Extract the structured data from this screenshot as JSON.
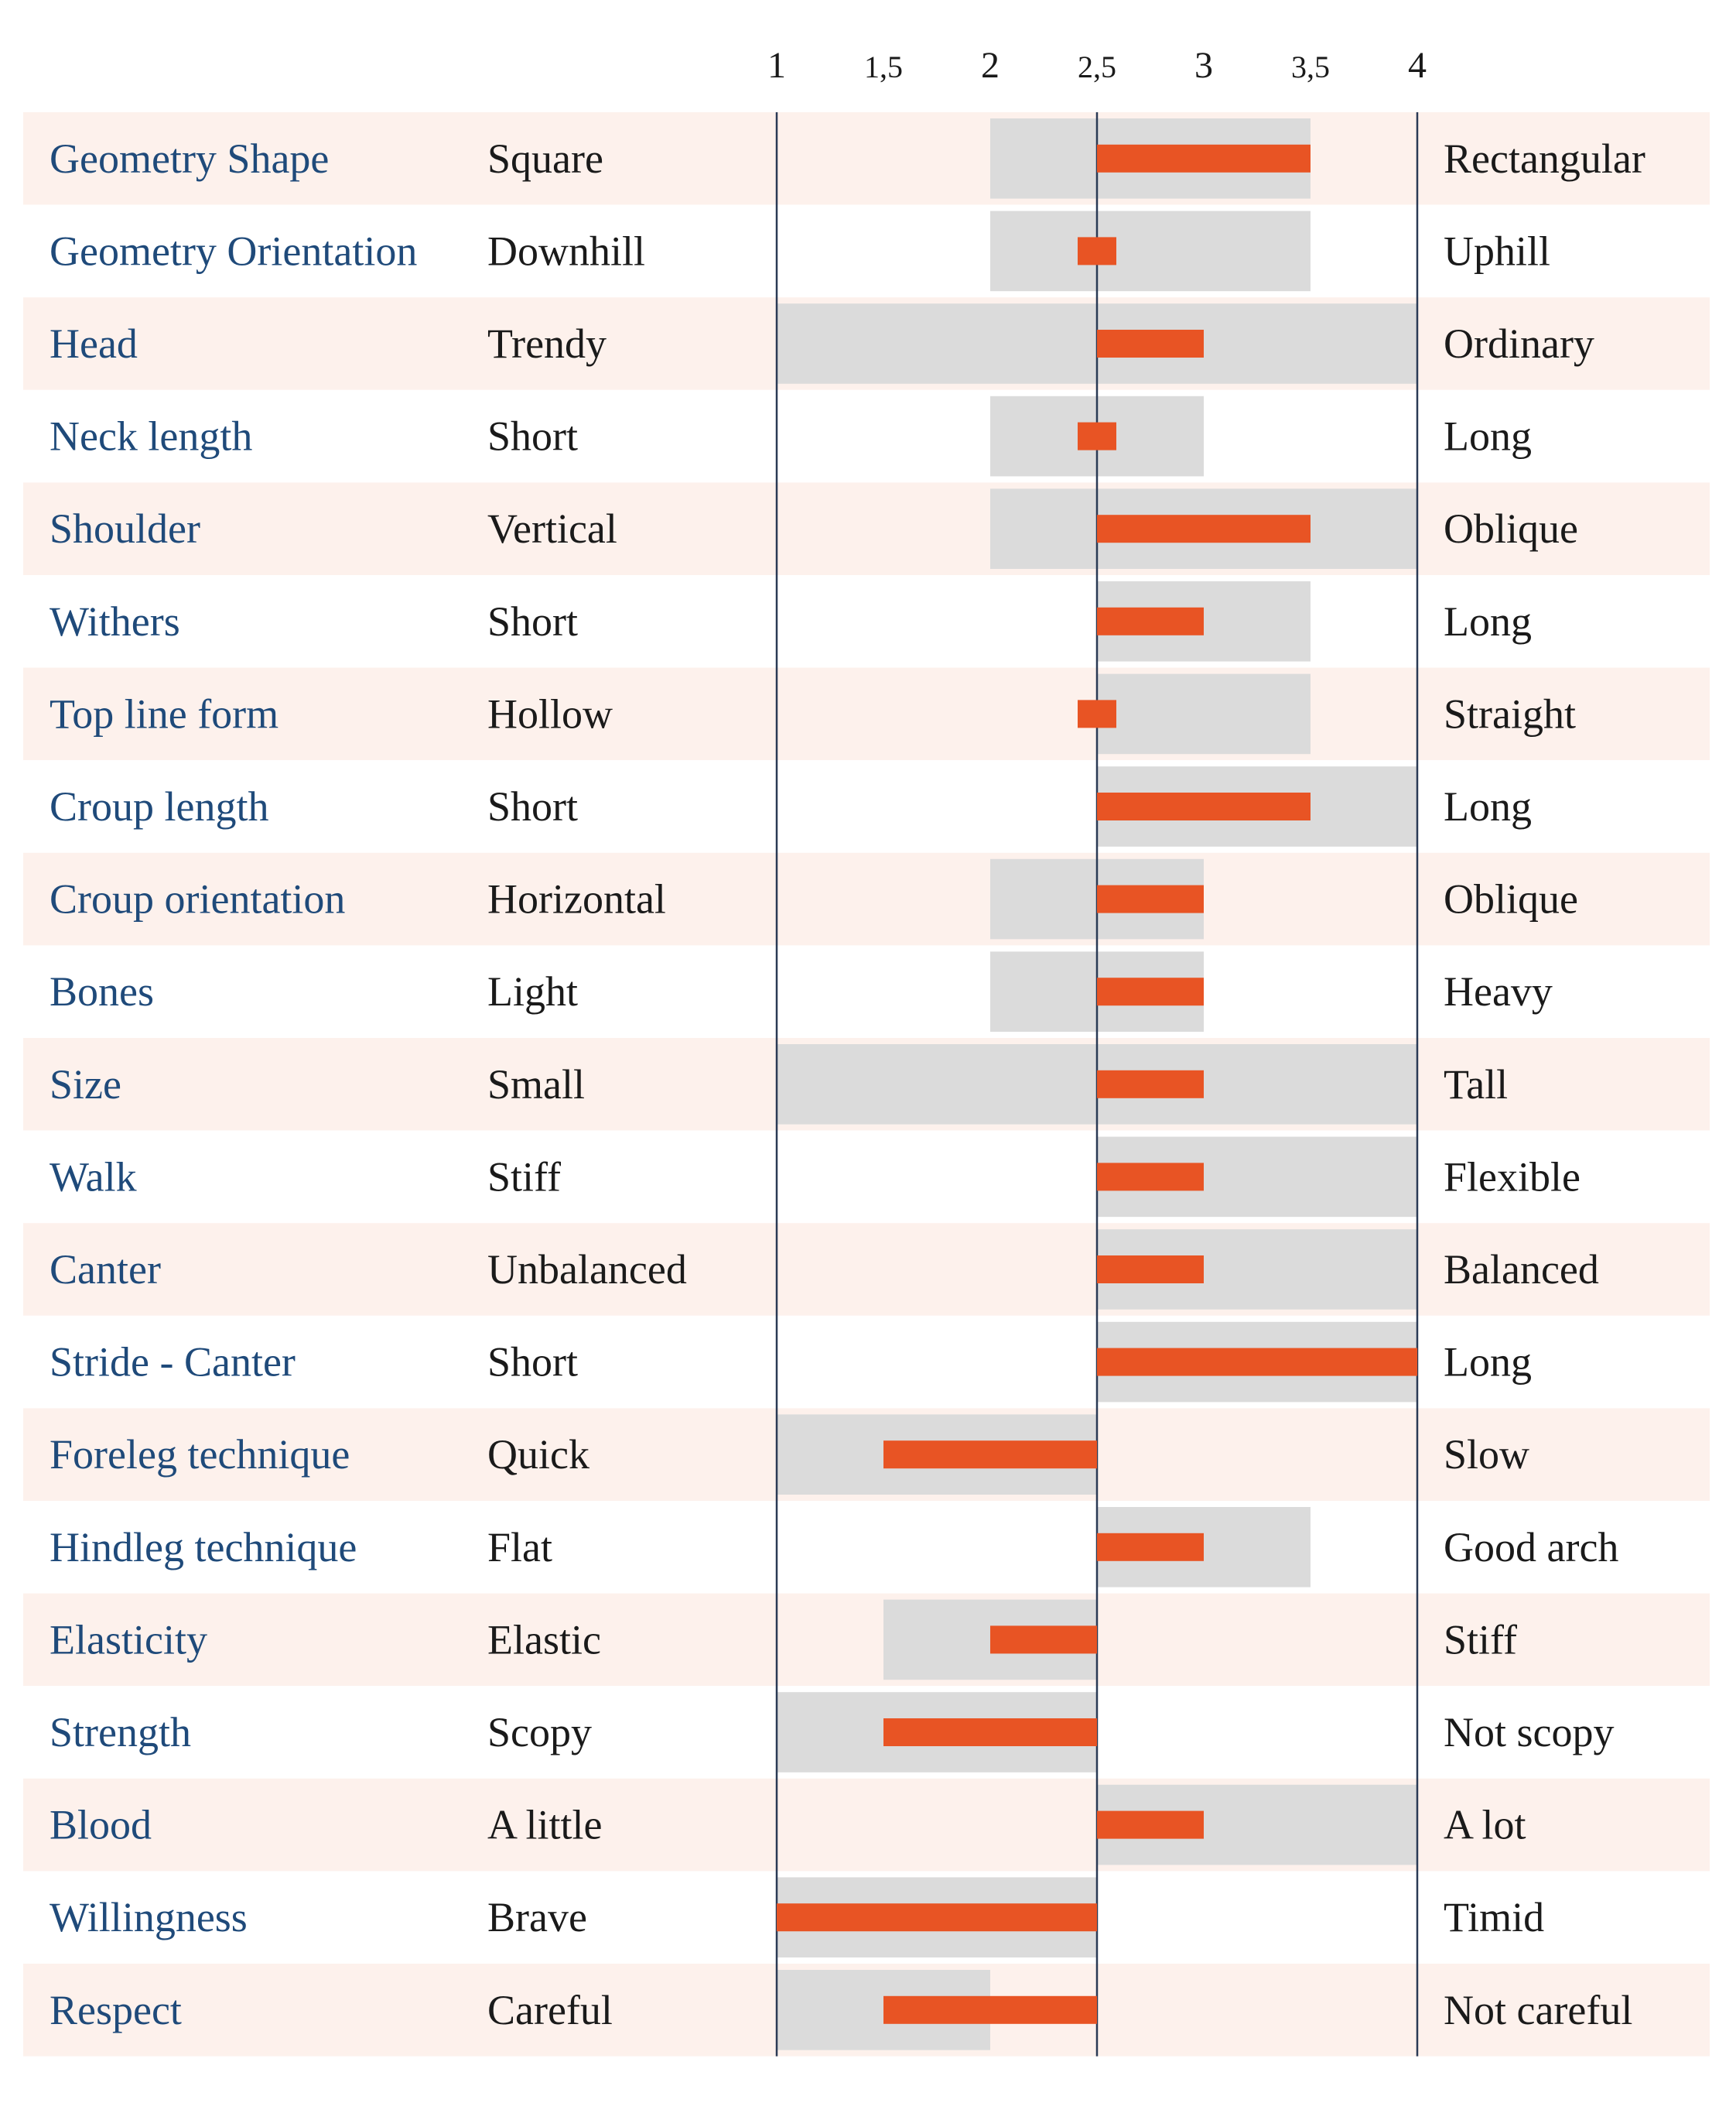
{
  "chart_data": {
    "type": "bar",
    "title": "",
    "xlabel": "",
    "ylabel": "",
    "xlim": [
      1,
      4
    ],
    "baseline": 2.5,
    "ticks": [
      {
        "value": 1,
        "label": "1"
      },
      {
        "value": 1.5,
        "label": "1,5"
      },
      {
        "value": 2,
        "label": "2"
      },
      {
        "value": 2.5,
        "label": "2,5"
      },
      {
        "value": 3,
        "label": "3"
      },
      {
        "value": 3.5,
        "label": "3,5"
      },
      {
        "value": 4,
        "label": "4"
      }
    ],
    "rows": [
      {
        "trait": "Geometry Shape",
        "low": "Square",
        "high": "Rectangular",
        "range": [
          2,
          3.5
        ],
        "value": 3.5
      },
      {
        "trait": "Geometry Orientation",
        "low": "Downhill",
        "high": "Uphill",
        "range": [
          2,
          3.5
        ],
        "value": 2.6
      },
      {
        "trait": "Head",
        "low": "Trendy",
        "high": "Ordinary",
        "range": [
          1,
          4
        ],
        "value": 3
      },
      {
        "trait": "Neck length",
        "low": "Short",
        "high": "Long",
        "range": [
          2,
          3
        ],
        "value": 2.6
      },
      {
        "trait": "Shoulder",
        "low": "Vertical",
        "high": "Oblique",
        "range": [
          2,
          4
        ],
        "value": 3.5
      },
      {
        "trait": "Withers",
        "low": "Short",
        "high": "Long",
        "range": [
          2.5,
          3.5
        ],
        "value": 3
      },
      {
        "trait": "Top line form",
        "low": "Hollow",
        "high": "Straight",
        "range": [
          2.5,
          3.5
        ],
        "value": 2.6
      },
      {
        "trait": "Croup length",
        "low": "Short",
        "high": "Long",
        "range": [
          2.5,
          4
        ],
        "value": 3.5
      },
      {
        "trait": "Croup orientation",
        "low": "Horizontal",
        "high": "Oblique",
        "range": [
          2,
          3
        ],
        "value": 3
      },
      {
        "trait": "Bones",
        "low": "Light",
        "high": "Heavy",
        "range": [
          2,
          3
        ],
        "value": 3
      },
      {
        "trait": "Size",
        "low": "Small",
        "high": "Tall",
        "range": [
          1,
          4
        ],
        "value": 3
      },
      {
        "trait": "Walk",
        "low": "Stiff",
        "high": "Flexible",
        "range": [
          2.5,
          4
        ],
        "value": 3
      },
      {
        "trait": "Canter",
        "low": "Unbalanced",
        "high": "Balanced",
        "range": [
          2.5,
          4
        ],
        "value": 3
      },
      {
        "trait": "Stride - Canter",
        "low": "Short",
        "high": "Long",
        "range": [
          2.5,
          4
        ],
        "value": 4
      },
      {
        "trait": "Foreleg technique",
        "low": "Quick",
        "high": "Slow",
        "range": [
          1,
          2.5
        ],
        "value": 1.5
      },
      {
        "trait": "Hindleg technique",
        "low": "Flat",
        "high": "Good arch",
        "range": [
          2.5,
          3.5
        ],
        "value": 3
      },
      {
        "trait": "Elasticity",
        "low": "Elastic",
        "high": "Stiff",
        "range": [
          1.5,
          2.5
        ],
        "value": 2
      },
      {
        "trait": "Strength",
        "low": "Scopy",
        "high": "Not scopy",
        "range": [
          1,
          2.5
        ],
        "value": 1.5
      },
      {
        "trait": "Blood",
        "low": "A little",
        "high": "A lot",
        "range": [
          2.5,
          4
        ],
        "value": 3
      },
      {
        "trait": "Willingness",
        "low": "Brave",
        "high": "Timid",
        "range": [
          1,
          2.5
        ],
        "value": 1
      },
      {
        "trait": "Respect",
        "low": "Careful",
        "high": "Not careful",
        "range": [
          1,
          2
        ],
        "value": 1.5
      }
    ],
    "colors": {
      "band_odd": "#fdf1ec",
      "band_even": "#ffffff",
      "range": "#dbdbdb",
      "value": "#e85424",
      "trait_text": "#1f4a7a",
      "pole_text": "#1a1a1a",
      "axis": "#2a3a55"
    }
  }
}
